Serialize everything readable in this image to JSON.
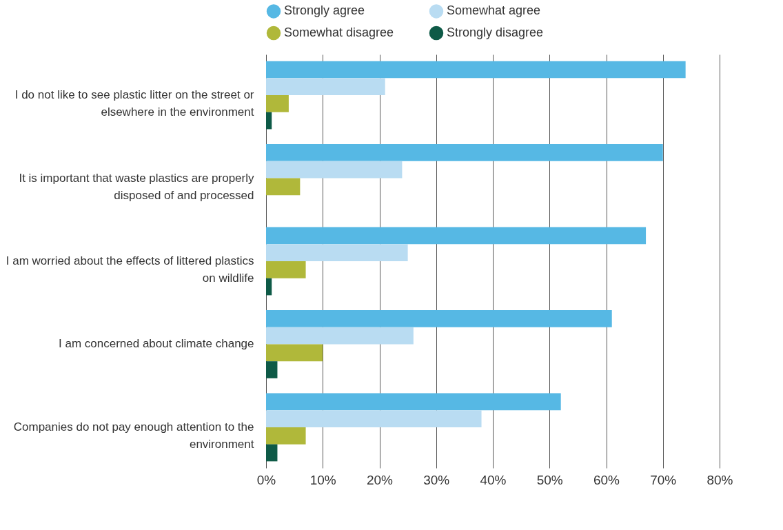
{
  "chart_data": {
    "type": "bar",
    "orientation": "horizontal",
    "categories": [
      "I do not like to see plastic litter on the street or elsewhere in the environment",
      "It is important that waste plastics are properly disposed of and processed",
      "I am worried about the effects of littered plastics on wildlife",
      "I am concerned about climate change",
      "Companies do not pay enough attention to the environment"
    ],
    "series": [
      {
        "name": "Strongly agree",
        "color": "#56b8e4",
        "values": [
          74,
          70,
          67,
          61,
          52
        ]
      },
      {
        "name": "Somewhat agree",
        "color": "#b9dcf2",
        "values": [
          21,
          24,
          25,
          26,
          38
        ]
      },
      {
        "name": "Somewhat disagree",
        "color": "#b0b83a",
        "values": [
          4,
          6,
          7,
          10,
          7
        ]
      },
      {
        "name": "Strongly disagree",
        "color": "#0e5a47",
        "values": [
          1,
          0,
          1,
          2,
          2
        ]
      }
    ],
    "xlim": [
      0,
      80
    ],
    "xticks": [
      {
        "value": 0,
        "label": "0%"
      },
      {
        "value": 10,
        "label": "10%"
      },
      {
        "value": 20,
        "label": "20%"
      },
      {
        "value": 30,
        "label": "30%"
      },
      {
        "value": 40,
        "label": "40%"
      },
      {
        "value": 50,
        "label": "50%"
      },
      {
        "value": 60,
        "label": "60%"
      },
      {
        "value": 70,
        "label": "70%"
      },
      {
        "value": 80,
        "label": "80%"
      }
    ],
    "grid": "x",
    "legend": "top"
  }
}
